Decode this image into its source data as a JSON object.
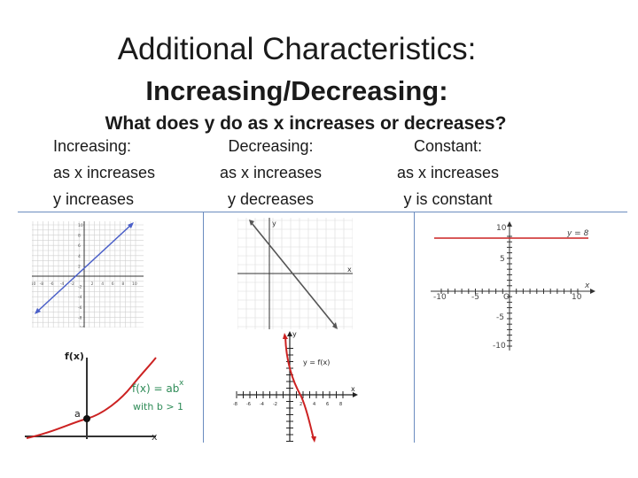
{
  "title": {
    "line1": "Additional Characteristics:",
    "line2": "Increasing/Decreasing:"
  },
  "subtitle": "What does y do as x increases or decreases?",
  "columns": [
    {
      "heading": "Increasing:",
      "line1": "as x increases",
      "line2": "y increases"
    },
    {
      "heading": "Decreasing:",
      "line1": "as x increases",
      "line2": "y decreases"
    },
    {
      "heading": "Constant:",
      "line1": "as x increases",
      "line2": "y is constant"
    }
  ],
  "graphs": {
    "increasing_linear": {
      "x_ticks": [
        "-10",
        "-8",
        "-6",
        "-4",
        "-2",
        "2",
        "4",
        "6",
        "8",
        "10"
      ],
      "y_ticks": [
        "10",
        "8",
        "6",
        "4",
        "2",
        "-2",
        "-4",
        "-6",
        "-8",
        "-10"
      ]
    },
    "exponential": {
      "y_label": "f(x)",
      "formula": "f(x) = ab",
      "exponent": "x",
      "condition": "with b > 1",
      "point_label": "a",
      "x_label": "x"
    },
    "decreasing_linear": {
      "x_label": "x",
      "y_label": "y"
    },
    "decreasing_curve": {
      "x_label": "x",
      "y_label": "y",
      "formula": "y = f(x)",
      "x_ticks": [
        "-8",
        "-6",
        "-4",
        "-2",
        "2",
        "4",
        "6",
        "8"
      ]
    },
    "constant": {
      "line_label": "y = 8",
      "y_top": "10",
      "y_mid": "5",
      "y_neg_mid": "-5",
      "y_bottom": "-10",
      "x_left": "-10",
      "x_left_mid": "-5",
      "origin": "O",
      "x_right": "10",
      "x_label": "x"
    }
  },
  "colors": {
    "accent_line": "#6b8cbf",
    "graph_blue": "#4a5fc8",
    "graph_red": "#cc2222"
  }
}
